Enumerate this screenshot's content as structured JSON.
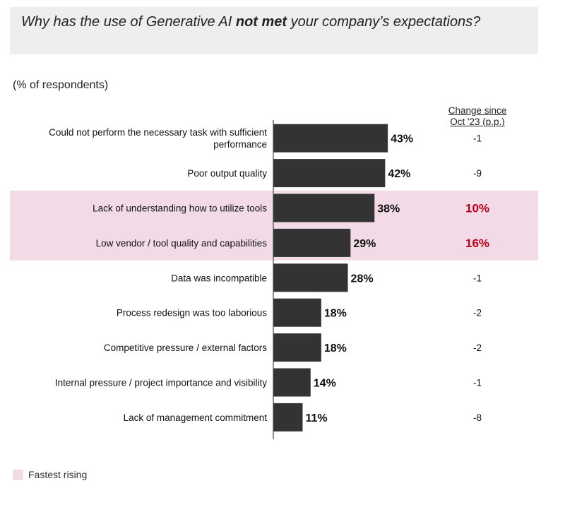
{
  "title": {
    "part1": "Why has the use of Generative AI ",
    "bold": "not met",
    "part2": " your company’s expectations?"
  },
  "subtitle": "(% of respondents)",
  "change_header": {
    "line1": "Change since",
    "line2": "Oct '23 (p.p.)"
  },
  "legend": {
    "label": "Fastest rising"
  },
  "colors": {
    "bar": "#333333",
    "highlight": "#f2dbe6",
    "rising_text": "#c0001a",
    "title_bg": "#eeeeee"
  },
  "chart_data": {
    "type": "bar",
    "orientation": "horizontal",
    "categories": [
      [
        "Could not perform the necessary task with sufficient",
        "performance"
      ],
      [
        "Poor output quality"
      ],
      [
        "Lack of understanding how to utilize tools"
      ],
      [
        "Low vendor / tool quality and capabilities"
      ],
      [
        "Data was incompatible"
      ],
      [
        "Process redesign was too laborious"
      ],
      [
        "Competitive pressure / external factors"
      ],
      [
        "Internal pressure / project importance and visibility"
      ],
      [
        "Lack of management commitment"
      ]
    ],
    "values": [
      43,
      42,
      38,
      29,
      28,
      18,
      18,
      14,
      11
    ],
    "value_labels": [
      "43%",
      "42%",
      "38%",
      "29%",
      "28%",
      "18%",
      "18%",
      "14%",
      "11%"
    ],
    "change": [
      "-1",
      "-9",
      "10%",
      "16%",
      "-1",
      "-2",
      "-2",
      "-1",
      "-8"
    ],
    "fastest_rising": [
      false,
      false,
      true,
      true,
      false,
      false,
      false,
      false,
      false
    ],
    "xlim": [
      0,
      100
    ],
    "grid": false
  }
}
